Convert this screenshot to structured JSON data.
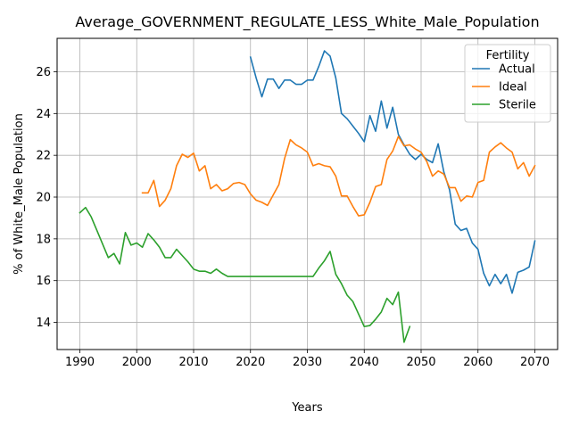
{
  "chart_data": {
    "type": "line",
    "title": "Average_GOVERNMENT_REGULATE_LESS_White_Male_Population",
    "xlabel": "Years",
    "ylabel": "% of White_Male Population",
    "xlim": [
      1986,
      2074
    ],
    "ylim": [
      12.7,
      27.6
    ],
    "xticks": [
      1990,
      2000,
      2010,
      2020,
      2030,
      2040,
      2050,
      2060,
      2070
    ],
    "yticks": [
      14,
      16,
      18,
      20,
      22,
      24,
      26
    ],
    "grid": true,
    "legend": {
      "title": "Fertility",
      "placement": "top-right"
    },
    "series": [
      {
        "name": "Actual",
        "color": "#1f77b4",
        "x": [
          2020,
          2021,
          2022,
          2023,
          2024,
          2025,
          2026,
          2027,
          2028,
          2029,
          2030,
          2031,
          2032,
          2033,
          2034,
          2035,
          2036,
          2037,
          2038,
          2039,
          2040,
          2041,
          2042,
          2043,
          2044,
          2045,
          2046,
          2047,
          2048,
          2049,
          2050,
          2051,
          2052,
          2053,
          2054,
          2055,
          2056,
          2057,
          2058,
          2059,
          2060,
          2061,
          2062,
          2063,
          2064,
          2065,
          2066,
          2067,
          2068,
          2069,
          2070
        ],
        "y": [
          26.7,
          25.7,
          24.8,
          25.65,
          25.65,
          25.2,
          25.6,
          25.6,
          25.4,
          25.4,
          25.6,
          25.6,
          26.25,
          27.0,
          26.75,
          25.7,
          24.0,
          23.75,
          23.4,
          23.05,
          22.65,
          23.9,
          23.15,
          24.6,
          23.3,
          24.3,
          23.0,
          22.5,
          22.05,
          21.8,
          22.05,
          21.8,
          21.65,
          22.55,
          21.2,
          20.35,
          18.7,
          18.4,
          18.5,
          17.8,
          17.5,
          16.35,
          15.75,
          16.3,
          15.85,
          16.3,
          15.4,
          16.4,
          16.5,
          16.65,
          17.9
        ]
      },
      {
        "name": "Ideal",
        "color": "#ff7f0e",
        "x": [
          2001,
          2002,
          2003,
          2004,
          2005,
          2006,
          2007,
          2008,
          2009,
          2010,
          2011,
          2012,
          2013,
          2014,
          2015,
          2016,
          2017,
          2018,
          2019,
          2020,
          2021,
          2022,
          2023,
          2024,
          2025,
          2026,
          2027,
          2028,
          2029,
          2030,
          2031,
          2032,
          2033,
          2034,
          2035,
          2036,
          2037,
          2038,
          2039,
          2040,
          2041,
          2042,
          2043,
          2044,
          2045,
          2046,
          2047,
          2048,
          2049,
          2050,
          2051,
          2052,
          2053,
          2054,
          2055,
          2056,
          2057,
          2058,
          2059,
          2060,
          2061,
          2062,
          2063,
          2064,
          2065,
          2066,
          2067,
          2068,
          2069,
          2070
        ],
        "y": [
          20.2,
          20.2,
          20.8,
          19.55,
          19.85,
          20.4,
          21.5,
          22.05,
          21.9,
          22.1,
          21.25,
          21.5,
          20.4,
          20.6,
          20.3,
          20.4,
          20.65,
          20.7,
          20.6,
          20.15,
          19.85,
          19.75,
          19.6,
          20.1,
          20.6,
          21.85,
          22.75,
          22.5,
          22.35,
          22.15,
          21.5,
          21.6,
          21.5,
          21.45,
          21.0,
          20.05,
          20.05,
          19.55,
          19.1,
          19.15,
          19.75,
          20.5,
          20.6,
          21.8,
          22.2,
          22.9,
          22.45,
          22.5,
          22.3,
          22.15,
          21.7,
          21.0,
          21.25,
          21.1,
          20.45,
          20.45,
          19.8,
          20.05,
          20.0,
          20.7,
          20.8,
          22.15,
          22.4,
          22.6,
          22.35,
          22.15,
          21.35,
          21.65,
          21.0,
          21.5
        ]
      },
      {
        "name": "Sterile",
        "color": "#2ca02c",
        "x": [
          1990,
          1991,
          1992,
          1993,
          1994,
          1995,
          1996,
          1997,
          1998,
          1999,
          2000,
          2001,
          2002,
          2003,
          2004,
          2005,
          2006,
          2007,
          2008,
          2009,
          2010,
          2011,
          2012,
          2013,
          2014,
          2015,
          2016,
          2017,
          2018,
          2019,
          2020,
          2021,
          2022,
          2023,
          2024,
          2025,
          2026,
          2027,
          2028,
          2029,
          2030,
          2031,
          2032,
          2033,
          2034,
          2035,
          2036,
          2037,
          2038,
          2039,
          2040,
          2041,
          2042,
          2043,
          2044,
          2045,
          2046,
          2047,
          2048
        ],
        "y": [
          19.25,
          19.5,
          19.05,
          18.4,
          17.75,
          17.1,
          17.3,
          16.8,
          18.3,
          17.7,
          17.8,
          17.6,
          18.25,
          17.95,
          17.6,
          17.1,
          17.1,
          17.5,
          17.2,
          16.9,
          16.55,
          16.45,
          16.45,
          16.35,
          16.55,
          16.35,
          16.2,
          16.2,
          16.2,
          16.2,
          16.2,
          16.2,
          16.2,
          16.2,
          16.2,
          16.2,
          16.2,
          16.2,
          16.2,
          16.2,
          16.2,
          16.2,
          16.6,
          16.95,
          17.4,
          16.3,
          15.85,
          15.3,
          15.0,
          14.4,
          13.8,
          13.85,
          14.15,
          14.5,
          15.15,
          14.85,
          15.45,
          13.05,
          13.8
        ]
      }
    ]
  }
}
